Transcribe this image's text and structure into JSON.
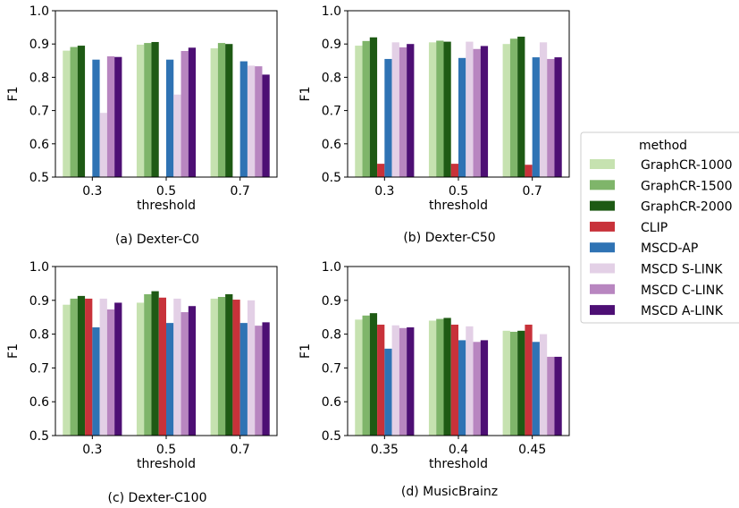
{
  "legend": {
    "title": "method",
    "placement": "right",
    "entries": [
      {
        "label": "GraphCR-1000",
        "color": "#c6e2b0"
      },
      {
        "label": "GraphCR-1500",
        "color": "#7fb56a"
      },
      {
        "label": "GraphCR-2000",
        "color": "#1e5a14"
      },
      {
        "label": "CLIP",
        "color": "#c8323a"
      },
      {
        "label": "MSCD-AP",
        "color": "#2f73b4"
      },
      {
        "label": "MSCD S-LINK",
        "color": "#e3d0e6"
      },
      {
        "label": "MSCD C-LINK",
        "color": "#b886c0"
      },
      {
        "label": "MSCD A-LINK",
        "color": "#4d0f74"
      }
    ]
  },
  "chart_data": [
    {
      "type": "bar",
      "caption": "(a) Dexter-C0",
      "xlabel": "threshold",
      "ylabel": "F1",
      "ylim": [
        0.5,
        1.0
      ],
      "yticks": [
        "0.5",
        "0.6",
        "0.7",
        "0.8",
        "0.9",
        "1.0"
      ],
      "categories": [
        "0.3",
        "0.5",
        "0.7"
      ],
      "series": [
        {
          "name": "GraphCR-1000",
          "values": [
            0.88,
            0.898,
            0.887
          ]
        },
        {
          "name": "GraphCR-1500",
          "values": [
            0.891,
            0.903,
            0.903
          ]
        },
        {
          "name": "GraphCR-2000",
          "values": [
            0.895,
            0.906,
            0.9
          ]
        },
        {
          "name": "CLIP",
          "values": [
            null,
            null,
            null
          ]
        },
        {
          "name": "MSCD-AP",
          "values": [
            0.853,
            0.853,
            0.848
          ]
        },
        {
          "name": "MSCD S-LINK",
          "values": [
            0.693,
            0.748,
            0.835
          ]
        },
        {
          "name": "MSCD C-LINK",
          "values": [
            0.863,
            0.879,
            0.833
          ]
        },
        {
          "name": "MSCD A-LINK",
          "values": [
            0.861,
            0.889,
            0.808
          ]
        }
      ]
    },
    {
      "type": "bar",
      "caption": "(b) Dexter-C50",
      "xlabel": "threshold",
      "ylabel": "F1",
      "ylim": [
        0.5,
        1.0
      ],
      "yticks": [
        "0.5",
        "0.6",
        "0.7",
        "0.8",
        "0.9",
        "1.0"
      ],
      "categories": [
        "0.3",
        "0.5",
        "0.7"
      ],
      "series": [
        {
          "name": "GraphCR-1000",
          "values": [
            0.895,
            0.905,
            0.9
          ]
        },
        {
          "name": "GraphCR-1500",
          "values": [
            0.909,
            0.91,
            0.916
          ]
        },
        {
          "name": "GraphCR-2000",
          "values": [
            0.92,
            0.907,
            0.922
          ]
        },
        {
          "name": "CLIP",
          "values": [
            0.54,
            0.54,
            0.537
          ]
        },
        {
          "name": "MSCD-AP",
          "values": [
            0.855,
            0.858,
            0.86
          ]
        },
        {
          "name": "MSCD S-LINK",
          "values": [
            0.905,
            0.907,
            0.905
          ]
        },
        {
          "name": "MSCD C-LINK",
          "values": [
            0.89,
            0.885,
            0.855
          ]
        },
        {
          "name": "MSCD A-LINK",
          "values": [
            0.9,
            0.894,
            0.86
          ]
        }
      ]
    },
    {
      "type": "bar",
      "caption": "(c) Dexter-C100",
      "xlabel": "threshold",
      "ylabel": "F1",
      "ylim": [
        0.5,
        1.0
      ],
      "yticks": [
        "0.5",
        "0.6",
        "0.7",
        "0.8",
        "0.9",
        "1.0"
      ],
      "categories": [
        "0.3",
        "0.5",
        "0.7"
      ],
      "series": [
        {
          "name": "GraphCR-1000",
          "values": [
            0.887,
            0.893,
            0.905
          ]
        },
        {
          "name": "GraphCR-1500",
          "values": [
            0.905,
            0.918,
            0.91
          ]
        },
        {
          "name": "GraphCR-2000",
          "values": [
            0.913,
            0.927,
            0.918
          ]
        },
        {
          "name": "CLIP",
          "values": [
            0.905,
            0.908,
            0.902
          ]
        },
        {
          "name": "MSCD-AP",
          "values": [
            0.82,
            0.833,
            0.833
          ]
        },
        {
          "name": "MSCD S-LINK",
          "values": [
            0.905,
            0.905,
            0.9
          ]
        },
        {
          "name": "MSCD C-LINK",
          "values": [
            0.873,
            0.865,
            0.825
          ]
        },
        {
          "name": "MSCD A-LINK",
          "values": [
            0.893,
            0.883,
            0.835
          ]
        }
      ]
    },
    {
      "type": "bar",
      "caption": "(d) MusicBrainz",
      "xlabel": "threshold",
      "ylabel": "F1",
      "ylim": [
        0.5,
        1.0
      ],
      "yticks": [
        "0.5",
        "0.6",
        "0.7",
        "0.8",
        "0.9",
        "1.0"
      ],
      "categories": [
        "0.35",
        "0.4",
        "0.45"
      ],
      "series": [
        {
          "name": "GraphCR-1000",
          "values": [
            0.843,
            0.84,
            0.81
          ]
        },
        {
          "name": "GraphCR-1500",
          "values": [
            0.855,
            0.845,
            0.807
          ]
        },
        {
          "name": "GraphCR-2000",
          "values": [
            0.862,
            0.848,
            0.81
          ]
        },
        {
          "name": "CLIP",
          "values": [
            0.828,
            0.828,
            0.828
          ]
        },
        {
          "name": "MSCD-AP",
          "values": [
            0.757,
            0.782,
            0.777
          ]
        },
        {
          "name": "MSCD S-LINK",
          "values": [
            0.826,
            0.823,
            0.8
          ]
        },
        {
          "name": "MSCD C-LINK",
          "values": [
            0.818,
            0.777,
            0.733
          ]
        },
        {
          "name": "MSCD A-LINK",
          "values": [
            0.82,
            0.782,
            0.733
          ]
        }
      ]
    }
  ]
}
